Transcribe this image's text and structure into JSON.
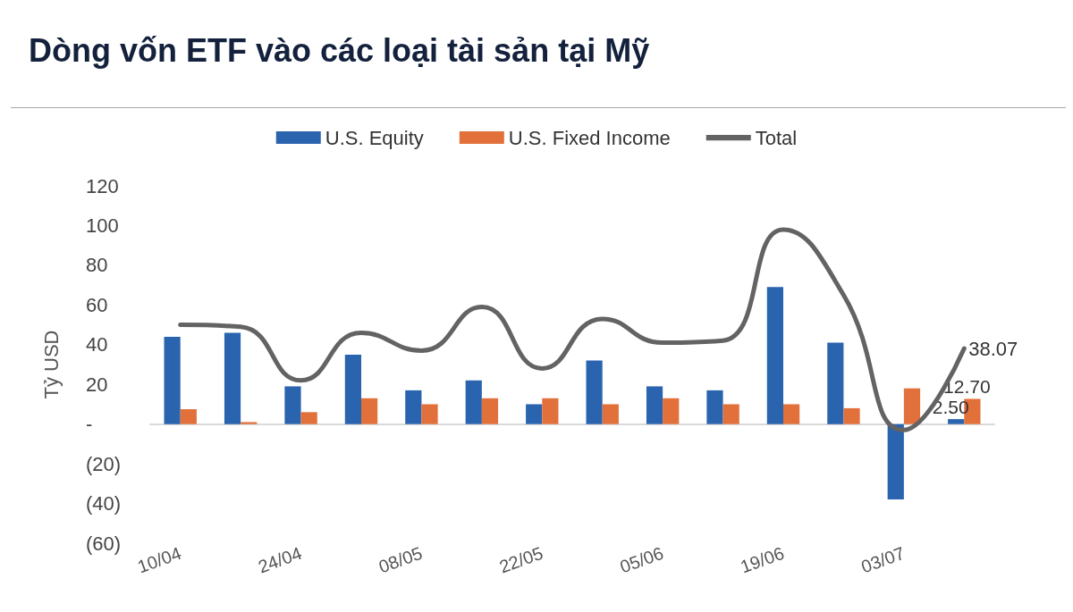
{
  "chart_data": {
    "type": "bar",
    "title": "Dòng vốn ETF vào các loại tài sản tại Mỹ",
    "ylabel": "Tỷ USD",
    "categories": [
      "10/04",
      null,
      "24/04",
      null,
      "08/05",
      null,
      "22/05",
      null,
      "05/06",
      null,
      "19/06",
      null,
      "03/07",
      null
    ],
    "series": [
      {
        "name": "U.S. Equity",
        "color": "#2a64ae",
        "values": [
          44,
          46,
          19,
          35,
          17,
          22,
          10,
          32,
          19,
          17,
          69,
          41,
          -38,
          2.5
        ],
        "value_labels": [
          null,
          null,
          null,
          null,
          null,
          null,
          null,
          null,
          null,
          null,
          null,
          null,
          null,
          "2.50"
        ]
      },
      {
        "name": "U.S. Fixed Income",
        "color": "#e2703a",
        "values": [
          7.5,
          1,
          6,
          13,
          10,
          13,
          13,
          10,
          13,
          10,
          10,
          8,
          18,
          12.7
        ],
        "value_labels": [
          null,
          null,
          null,
          null,
          null,
          null,
          null,
          null,
          null,
          null,
          null,
          null,
          null,
          "12.70"
        ]
      },
      {
        "name": "Total",
        "type": "line",
        "color": "#636363",
        "values": [
          50,
          49,
          22,
          46,
          37,
          59,
          28,
          53,
          41,
          42,
          98,
          65,
          -3,
          38.07
        ],
        "value_labels": [
          null,
          null,
          null,
          null,
          null,
          null,
          null,
          null,
          null,
          null,
          null,
          null,
          null,
          "38.07"
        ]
      }
    ],
    "ylim": [
      -60,
      120
    ],
    "yticks": [
      {
        "value": -60,
        "label": "(60)"
      },
      {
        "value": -40,
        "label": "(40)"
      },
      {
        "value": -20,
        "label": "(20)"
      },
      {
        "value": 0,
        "label": "-"
      },
      20,
      40,
      60,
      80,
      100,
      120
    ],
    "legend": "top",
    "marker": "none",
    "line_style": "solid"
  }
}
